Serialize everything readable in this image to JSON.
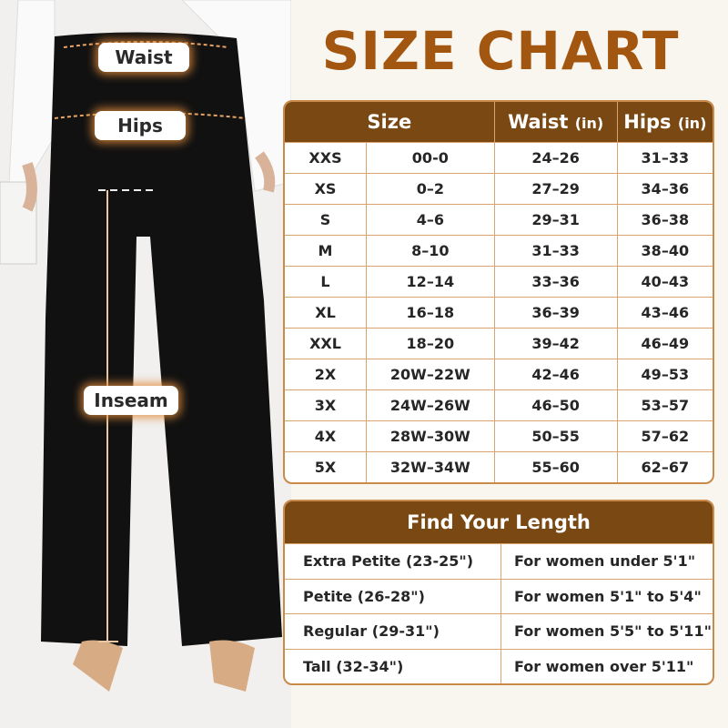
{
  "title": "SIZE CHART",
  "labels": {
    "waist": "Waist",
    "hips": "Hips",
    "inseam": "Inseam"
  },
  "size_table": {
    "headers": {
      "size": "Size",
      "waist": "Waist",
      "hips": "Hips",
      "unit": "(in)"
    },
    "rows": [
      [
        "XXS",
        "00-0",
        "24–26",
        "31–33"
      ],
      [
        "XS",
        "0–2",
        "27–29",
        "34–36"
      ],
      [
        "S",
        "4–6",
        "29–31",
        "36–38"
      ],
      [
        "M",
        "8–10",
        "31–33",
        "38–40"
      ],
      [
        "L",
        "12–14",
        "33–36",
        "40–43"
      ],
      [
        "XL",
        "16–18",
        "36–39",
        "43–46"
      ],
      [
        "XXL",
        "18–20",
        "39–42",
        "46–49"
      ],
      [
        "2X",
        "20W–22W",
        "42–46",
        "49–53"
      ],
      [
        "3X",
        "24W–26W",
        "46–50",
        "53–57"
      ],
      [
        "4X",
        "28W–30W",
        "50–55",
        "57–62"
      ],
      [
        "5X",
        "32W–34W",
        "55–60",
        "62–67"
      ]
    ]
  },
  "length_table": {
    "header": "Find Your Length",
    "rows": [
      [
        "Extra Petite (23-25\")",
        "For women under 5'1\""
      ],
      [
        "Petite (26-28\")",
        "For women 5'1\" to 5'4\""
      ],
      [
        "Regular (29-31\")",
        "For women 5'5\" to 5'11\""
      ],
      [
        "Tall (32-34\")",
        "For women over 5'11\""
      ]
    ]
  },
  "colors": {
    "header": "#7a4813",
    "title": "#a3560f",
    "border": "#d9a36e",
    "background": "#f9f5ef"
  }
}
